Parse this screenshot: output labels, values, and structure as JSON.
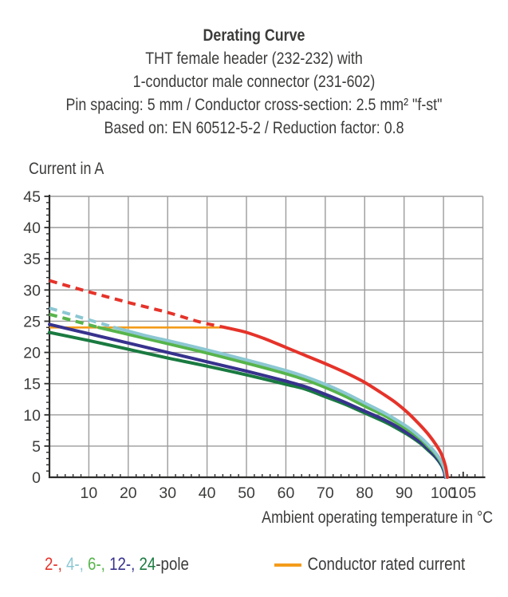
{
  "header": {
    "title": "Derating Curve",
    "lines": [
      "THT female header (232-232) with",
      "1-conductor male connector (231-602)",
      "Pin spacing: 5 mm / Conductor cross-section: 2.5 mm² \"f-st\"",
      "Based on: EN 60512-5-2 / Reduction factor: 0.8"
    ]
  },
  "colors": {
    "text": "#3C3C3B",
    "axis": "#2D2D2C",
    "grid": "#9C9C9C",
    "rated_orange": "#F49C1C",
    "pole2_red": "#E5332A",
    "pole4_cyan": "#8CC7D3",
    "pole6_lightgreen": "#57B44B",
    "pole12_indigo": "#37328D",
    "pole24_darkgreen": "#1A7A40"
  },
  "chart_data": {
    "type": "line",
    "title": "Derating Curve",
    "xlabel": "Ambient operating temperature in °C",
    "ylabel": "Current in A",
    "xlim": [
      0,
      110
    ],
    "ylim": [
      0,
      45
    ],
    "x_ticks": [
      10,
      20,
      30,
      40,
      50,
      60,
      70,
      80,
      90,
      100,
      105
    ],
    "y_ticks": [
      0,
      5,
      10,
      15,
      20,
      25,
      30,
      35,
      40,
      45
    ],
    "x_minor_step": 2,
    "y_minor_step": 1,
    "grid": true,
    "legend_position": "bottom",
    "rated_current": {
      "label": "Conductor rated current",
      "value": 24,
      "x_range": [
        0,
        44.6
      ],
      "color": "#F49C1C"
    },
    "series": [
      {
        "name": "24-pole",
        "color": "#1A7A40",
        "dash_until": null,
        "points": [
          [
            0,
            23.2
          ],
          [
            10,
            21.9
          ],
          [
            20,
            20.5
          ],
          [
            30,
            19.1
          ],
          [
            40,
            17.8
          ],
          [
            50,
            16.4
          ],
          [
            60,
            14.9
          ],
          [
            65,
            14.1
          ],
          [
            70,
            12.9
          ],
          [
            75,
            11.7
          ],
          [
            80,
            10.3
          ],
          [
            85,
            8.9
          ],
          [
            88,
            7.9
          ],
          [
            91,
            6.8
          ],
          [
            94,
            5.5
          ],
          [
            96,
            4.4
          ],
          [
            98,
            3.2
          ],
          [
            99.5,
            1.9
          ],
          [
            100.2,
            0.8
          ],
          [
            100.5,
            0
          ]
        ]
      },
      {
        "name": "12-pole",
        "color": "#37328D",
        "dash_until": null,
        "points": [
          [
            0,
            24.5
          ],
          [
            10,
            23.0
          ],
          [
            20,
            21.5
          ],
          [
            30,
            20.0
          ],
          [
            40,
            18.5
          ],
          [
            50,
            17.0
          ],
          [
            60,
            15.4
          ],
          [
            65,
            14.5
          ],
          [
            70,
            13.3
          ],
          [
            75,
            12.0
          ],
          [
            80,
            10.6
          ],
          [
            85,
            9.2
          ],
          [
            88,
            8.2
          ],
          [
            91,
            7.0
          ],
          [
            94,
            5.7
          ],
          [
            96,
            4.6
          ],
          [
            98,
            3.3
          ],
          [
            99.5,
            2.0
          ],
          [
            100.2,
            0.9
          ],
          [
            100.5,
            0
          ]
        ]
      },
      {
        "name": "6-pole",
        "color": "#57B44B",
        "dash_until": 12.5,
        "points": [
          [
            0,
            26.1
          ],
          [
            6,
            25.1
          ],
          [
            12.5,
            24.0
          ],
          [
            20,
            22.9
          ],
          [
            30,
            21.4
          ],
          [
            40,
            19.9
          ],
          [
            50,
            18.3
          ],
          [
            60,
            16.6
          ],
          [
            65,
            15.6
          ],
          [
            70,
            14.4
          ],
          [
            75,
            13.0
          ],
          [
            80,
            11.4
          ],
          [
            85,
            9.9
          ],
          [
            88,
            8.8
          ],
          [
            91,
            7.6
          ],
          [
            94,
            6.2
          ],
          [
            96,
            5.0
          ],
          [
            98,
            3.7
          ],
          [
            99.5,
            2.3
          ],
          [
            100.3,
            1.1
          ],
          [
            100.7,
            0
          ]
        ]
      },
      {
        "name": "4-pole",
        "color": "#8CC7D3",
        "dash_until": 16.5,
        "points": [
          [
            0,
            27.1
          ],
          [
            8,
            25.6
          ],
          [
            16.5,
            24.0
          ],
          [
            25,
            22.6
          ],
          [
            30,
            21.9
          ],
          [
            40,
            20.4
          ],
          [
            50,
            18.8
          ],
          [
            60,
            17.1
          ],
          [
            65,
            16.1
          ],
          [
            70,
            14.9
          ],
          [
            75,
            13.5
          ],
          [
            80,
            11.9
          ],
          [
            85,
            10.3
          ],
          [
            88,
            9.2
          ],
          [
            91,
            8.0
          ],
          [
            94,
            6.5
          ],
          [
            96,
            5.3
          ],
          [
            98,
            3.9
          ],
          [
            99.5,
            2.5
          ],
          [
            100.3,
            1.2
          ],
          [
            100.7,
            0
          ]
        ]
      },
      {
        "name": "2-pole",
        "color": "#E5332A",
        "dash_until": 44.6,
        "points": [
          [
            0,
            31.5
          ],
          [
            10,
            29.7
          ],
          [
            20,
            28.0
          ],
          [
            30,
            26.4
          ],
          [
            38,
            24.9
          ],
          [
            44.6,
            24.0
          ],
          [
            50,
            23.2
          ],
          [
            55,
            22.1
          ],
          [
            60,
            20.8
          ],
          [
            65,
            19.5
          ],
          [
            70,
            18.2
          ],
          [
            75,
            16.8
          ],
          [
            80,
            15.2
          ],
          [
            85,
            13.2
          ],
          [
            88,
            11.9
          ],
          [
            91,
            10.3
          ],
          [
            94,
            8.4
          ],
          [
            96,
            7.0
          ],
          [
            98,
            5.3
          ],
          [
            99.5,
            3.7
          ],
          [
            100.5,
            1.8
          ],
          [
            101,
            0
          ]
        ]
      }
    ]
  },
  "legend": {
    "poles": [
      {
        "text": "2-, ",
        "color": "#E5332A"
      },
      {
        "text": "4-, ",
        "color": "#8CC7D3"
      },
      {
        "text": "6-, ",
        "color": "#57B44B"
      },
      {
        "text": "12-, ",
        "color": "#37328D"
      },
      {
        "text": "24",
        "color": "#1A7A40"
      },
      {
        "text": "-pole",
        "color": "#3C3C3B"
      }
    ],
    "rated_label": "Conductor rated current"
  }
}
